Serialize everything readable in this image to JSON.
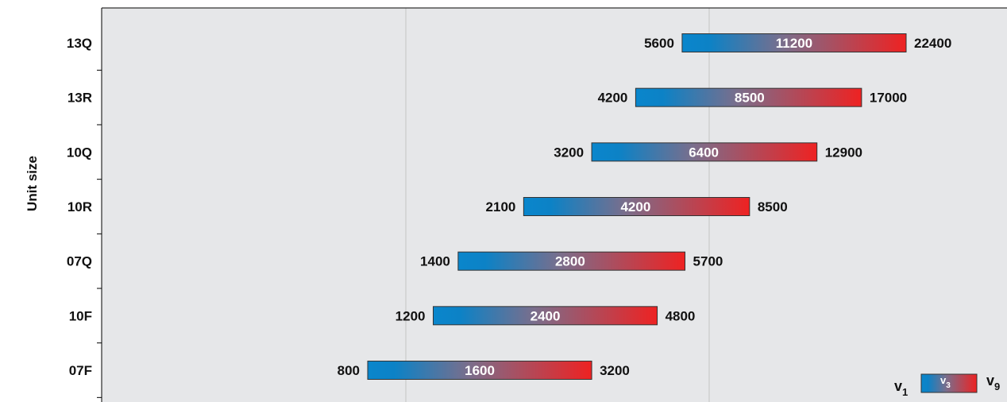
{
  "chart_data": {
    "type": "bar",
    "orientation": "horizontal",
    "subtype": "floating-range",
    "scale": "log",
    "ylabel": "Unit size",
    "xlabel": "",
    "categories": [
      "07F",
      "10F",
      "07Q",
      "10R",
      "10Q",
      "13R",
      "13Q"
    ],
    "series": [
      {
        "name": "v1",
        "values": [
          800,
          1200,
          1400,
          2100,
          3200,
          4200,
          5600
        ]
      },
      {
        "name": "v3",
        "values": [
          1600,
          2400,
          2800,
          4200,
          6400,
          8500,
          11200
        ]
      },
      {
        "name": "v9",
        "values": [
          3200,
          4800,
          5700,
          8500,
          12900,
          17000,
          22400
        ]
      }
    ],
    "grid": {
      "vertical": true,
      "horizontal": false
    },
    "legend": {
      "position": "bottom-right",
      "labels": {
        "v1": "v",
        "v1_sub": "1",
        "v3": "v",
        "v3_sub": "3",
        "v9": "v",
        "v9_sub": "9"
      }
    },
    "colors": {
      "start": "#0a86cc",
      "mid": "#7a6e8c",
      "end": "#ee2222",
      "plot_background": "#e6e7e9",
      "gridline": "#c4c4c4"
    }
  }
}
